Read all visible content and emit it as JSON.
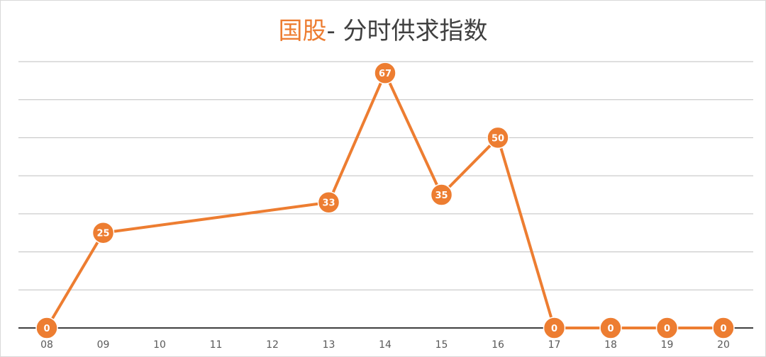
{
  "title": {
    "accent": "国股",
    "rest": "- 分时供求指数"
  },
  "colors": {
    "series": "#ed7d31",
    "grid": "#bfbfbf",
    "axis": "#404040",
    "text": "#595959"
  },
  "chart_data": {
    "type": "line",
    "title": "国股- 分时供求指数",
    "xlabel": "",
    "ylabel": "",
    "categories": [
      "08",
      "09",
      "10",
      "11",
      "12",
      "13",
      "14",
      "15",
      "16",
      "17",
      "18",
      "19",
      "20"
    ],
    "series": [
      {
        "values": [
          0,
          25,
          null,
          null,
          null,
          33,
          67,
          35,
          50,
          0,
          0,
          0,
          0
        ],
        "labels": [
          "0",
          "25",
          null,
          null,
          null,
          "33",
          "67",
          "35",
          "50",
          "0",
          "0",
          "0",
          "0"
        ]
      }
    ],
    "ylim": [
      0,
      70
    ],
    "grid": true,
    "y_tick_labels_shown": false,
    "legend": "none"
  }
}
